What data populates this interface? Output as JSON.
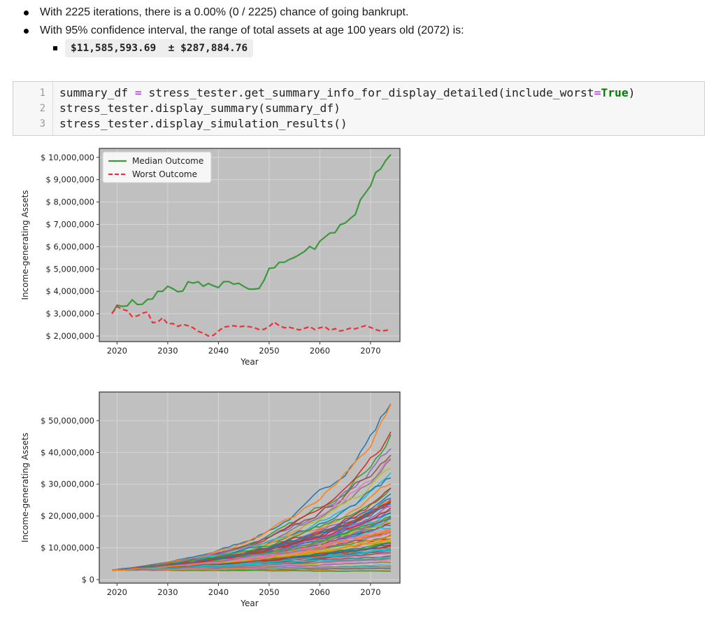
{
  "bullets": {
    "line1": "With 2225 iterations, there is a 0.00% (0 / 2225) chance of going bankrupt.",
    "line2": "With 95% confidence interval, the range of total assets at age 100 years old (2072) is:",
    "range_text": "$11,585,593.69  ± $287,884.76"
  },
  "code_cell": {
    "line_numbers": [
      "1",
      "2",
      "3"
    ],
    "line1": {
      "a": "summary_df ",
      "op": "=",
      "b": " stress_tester.get_summary_info_for_display_detailed(include_worst",
      "op2": "=",
      "kw": "True",
      "c": ")"
    },
    "line2": "stress_tester.display_summary(summary_df)",
    "line3": "stress_tester.display_simulation_results()"
  },
  "colors": {
    "plot_bg": "#c0c0c0",
    "median": "#3a9a3a",
    "worst": "#e8333a",
    "frame": "#333333"
  },
  "chart_data": [
    {
      "type": "line",
      "title": "",
      "xlabel": "Year",
      "ylabel": "Income-generating Assets",
      "x_ticks": [
        2020,
        2030,
        2040,
        2050,
        2060,
        2070
      ],
      "y_ticks": [
        2000000,
        3000000,
        4000000,
        5000000,
        6000000,
        7000000,
        8000000,
        9000000,
        10000000
      ],
      "y_tick_labels": [
        "$ 2,000,000",
        "$ 3,000,000",
        "$ 4,000,000",
        "$ 5,000,000",
        "$ 6,000,000",
        "$ 7,000,000",
        "$ 8,000,000",
        "$ 9,000,000",
        "$ 10,000,000"
      ],
      "xlim": [
        2016.5,
        2075.8
      ],
      "ylim": [
        1750000,
        10400000
      ],
      "grid": true,
      "legend_position": "top-left",
      "x": [
        2019,
        2020,
        2021,
        2022,
        2023,
        2024,
        2025,
        2026,
        2027,
        2028,
        2029,
        2030,
        2031,
        2032,
        2033,
        2034,
        2035,
        2036,
        2037,
        2038,
        2039,
        2040,
        2041,
        2042,
        2043,
        2044,
        2045,
        2046,
        2047,
        2048,
        2049,
        2050,
        2051,
        2052,
        2053,
        2054,
        2055,
        2056,
        2057,
        2058,
        2059,
        2060,
        2061,
        2062,
        2063,
        2064,
        2065,
        2066,
        2067,
        2068,
        2069,
        2070,
        2071,
        2072,
        2073,
        2074
      ],
      "series": [
        {
          "name": "Median Outcome",
          "style": "solid",
          "values": [
            3000000,
            3380000,
            3330000,
            3350000,
            3620000,
            3410000,
            3420000,
            3640000,
            3660000,
            4000000,
            4000000,
            4230000,
            4120000,
            3980000,
            4020000,
            4430000,
            4370000,
            4430000,
            4230000,
            4350000,
            4250000,
            4170000,
            4430000,
            4440000,
            4320000,
            4360000,
            4220000,
            4100000,
            4100000,
            4130000,
            4500000,
            5030000,
            5050000,
            5300000,
            5300000,
            5430000,
            5520000,
            5650000,
            5790000,
            6010000,
            5880000,
            6240000,
            6430000,
            6610000,
            6630000,
            6980000,
            7060000,
            7260000,
            7440000,
            8100000,
            8410000,
            8720000,
            9320000,
            9480000,
            9860000,
            10120000
          ]
        },
        {
          "name": "Worst Outcome",
          "style": "dashed",
          "values": [
            3000000,
            3320000,
            3200000,
            3130000,
            2870000,
            2900000,
            3020000,
            3080000,
            2600000,
            2620000,
            2810000,
            2550000,
            2560000,
            2430000,
            2520000,
            2460000,
            2370000,
            2210000,
            2130000,
            2000000,
            2030000,
            2220000,
            2400000,
            2430000,
            2460000,
            2410000,
            2440000,
            2420000,
            2380000,
            2290000,
            2300000,
            2430000,
            2620000,
            2460000,
            2370000,
            2390000,
            2330000,
            2270000,
            2350000,
            2420000,
            2290000,
            2370000,
            2410000,
            2250000,
            2330000,
            2220000,
            2280000,
            2350000,
            2320000,
            2400000,
            2460000,
            2390000,
            2290000,
            2220000,
            2250000,
            2290000
          ]
        }
      ]
    },
    {
      "type": "line",
      "title": "",
      "xlabel": "Year",
      "ylabel": "Income-generating Assets",
      "x_ticks": [
        2020,
        2030,
        2040,
        2050,
        2060,
        2070
      ],
      "y_ticks": [
        0,
        10000000,
        20000000,
        30000000,
        40000000,
        50000000
      ],
      "y_tick_labels": [
        "$ 0",
        "$ 10,000,000",
        "$ 20,000,000",
        "$ 30,000,000",
        "$ 40,000,000",
        "$ 50,000,000"
      ],
      "xlim": [
        2016.5,
        2075.8
      ],
      "ylim": [
        -1100000,
        59000000
      ],
      "grid": true,
      "start_value": 3000000,
      "end_values": [
        56000000,
        52500000,
        45000000,
        43500000,
        42000000,
        40500000,
        38500000,
        37000000,
        35000000,
        33500000,
        32000000,
        30500000,
        29000000,
        27500000,
        26000000,
        24500000,
        23000000,
        21500000,
        20000000,
        18500000,
        17000000,
        15500000,
        14000000,
        12500000,
        11000000,
        9500000,
        8000000,
        6500000,
        5500000,
        4500000,
        3500000,
        2800000
      ]
    }
  ]
}
